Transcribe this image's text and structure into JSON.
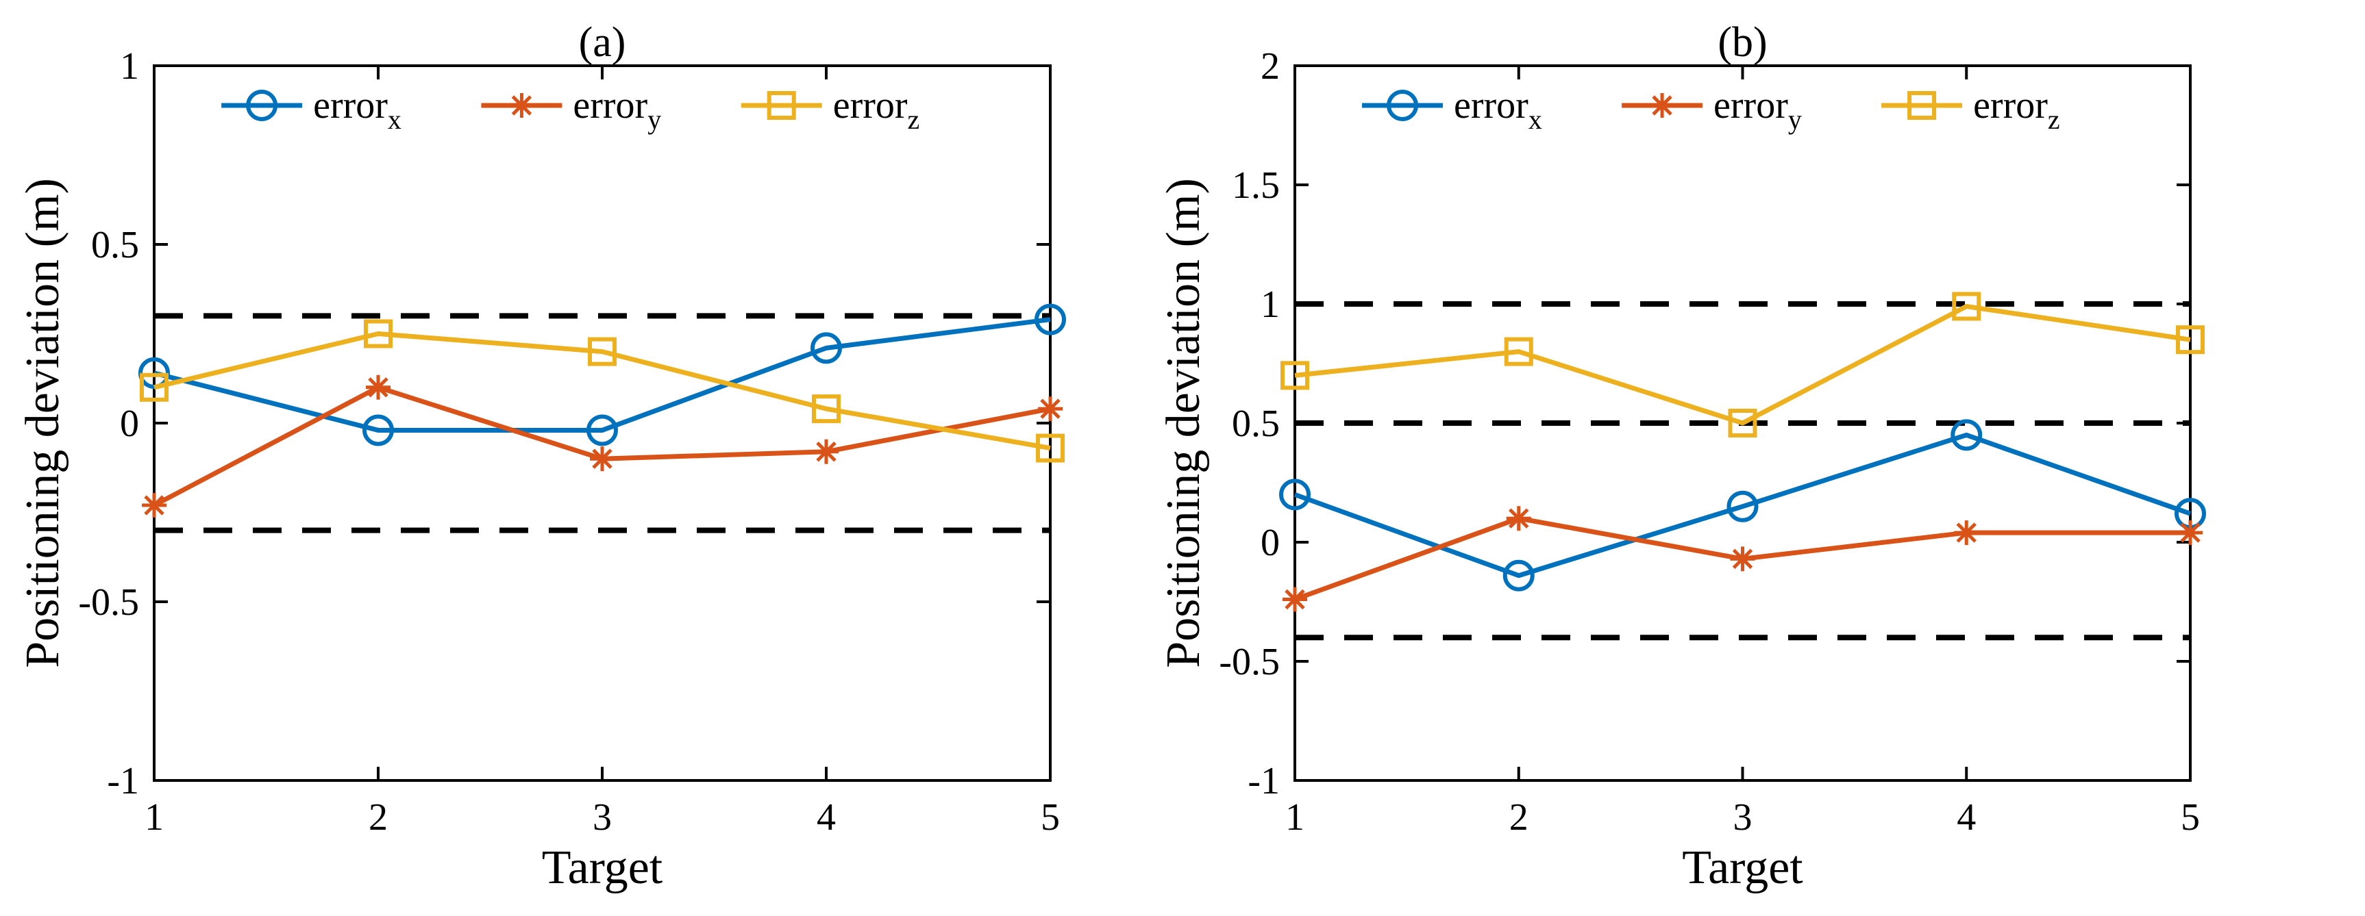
{
  "chart_data": [
    {
      "type": "line",
      "title": "(a)",
      "xlabel": "Target",
      "ylabel": "Positioning deviation (m)",
      "x": [
        1,
        2,
        3,
        4,
        5
      ],
      "xlim": [
        1,
        5
      ],
      "ylim": [
        -1,
        1
      ],
      "xticks": [
        "1",
        "2",
        "3",
        "4",
        "5"
      ],
      "yticks": [
        -1,
        -0.5,
        0,
        0.5,
        1
      ],
      "ytick_labels": [
        "-1",
        "-0.5",
        "0",
        "0.5",
        "1"
      ],
      "series": [
        {
          "name": "error",
          "subscript": "x",
          "color": "#0072BD",
          "marker": "circle",
          "values": [
            0.14,
            -0.02,
            -0.02,
            0.21,
            0.29
          ]
        },
        {
          "name": "error",
          "subscript": "y",
          "color": "#D95319",
          "marker": "asterisk",
          "values": [
            -0.23,
            0.1,
            -0.1,
            -0.08,
            0.04
          ]
        },
        {
          "name": "error",
          "subscript": "z",
          "color": "#EDB120",
          "marker": "square",
          "values": [
            0.1,
            0.25,
            0.2,
            0.04,
            -0.07
          ]
        }
      ],
      "reference_lines": [
        0.3,
        -0.3
      ],
      "legend": "top"
    },
    {
      "type": "line",
      "title": "(b)",
      "xlabel": "Target",
      "ylabel": "Positioning deviation (m)",
      "x": [
        1,
        2,
        3,
        4,
        5
      ],
      "xlim": [
        1,
        5
      ],
      "ylim": [
        -1,
        2
      ],
      "xticks": [
        "1",
        "2",
        "3",
        "4",
        "5"
      ],
      "yticks": [
        -1,
        -0.5,
        0,
        0.5,
        1,
        1.5,
        2
      ],
      "ytick_labels": [
        "-1",
        "-0.5",
        "0",
        "0.5",
        "1",
        "1.5",
        "2"
      ],
      "series": [
        {
          "name": "error",
          "subscript": "x",
          "color": "#0072BD",
          "marker": "circle",
          "values": [
            0.2,
            -0.14,
            0.15,
            0.45,
            0.12
          ]
        },
        {
          "name": "error",
          "subscript": "y",
          "color": "#D95319",
          "marker": "asterisk",
          "values": [
            -0.24,
            0.1,
            -0.07,
            0.04,
            0.04
          ]
        },
        {
          "name": "error",
          "subscript": "z",
          "color": "#EDB120",
          "marker": "square",
          "values": [
            0.7,
            0.8,
            0.5,
            0.99,
            0.85
          ]
        }
      ],
      "reference_lines": [
        1.0,
        0.5,
        -0.4
      ],
      "legend": "top"
    }
  ]
}
